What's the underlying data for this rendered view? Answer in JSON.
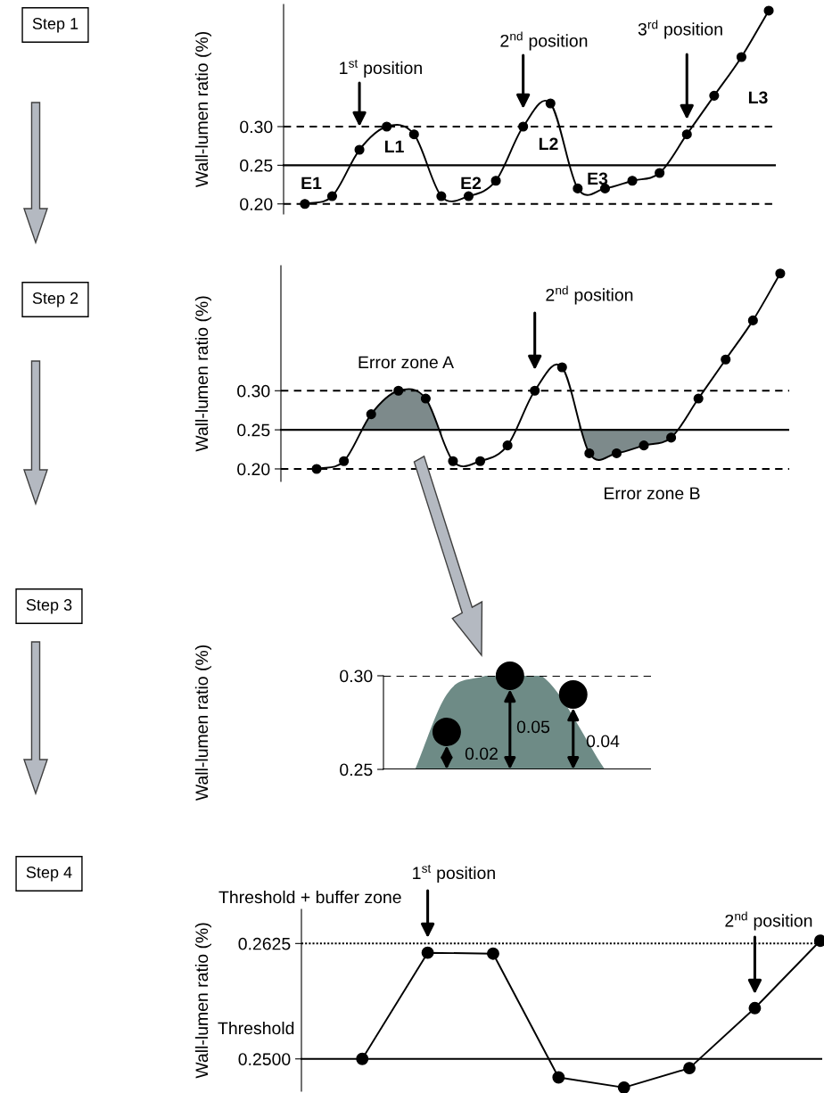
{
  "chart_data": [
    {
      "type": "line",
      "ylabel": "Wall-lumen ratio (%)",
      "categories": [
        null,
        null,
        null,
        null,
        null,
        null,
        null,
        null,
        null,
        null,
        null,
        null,
        null,
        null,
        null,
        null,
        null,
        null
      ],
      "series": [
        {
          "color": "#000000",
          "values": [
            0.2,
            0.21,
            0.27,
            0.3,
            0.29,
            0.21,
            0.21,
            0.23,
            0.3,
            0.33,
            0.22,
            0.22,
            0.23,
            0.24,
            0.29,
            0.34,
            0.39,
            0.45
          ]
        }
      ],
      "ylim": [
        0.187,
        0.458
      ],
      "yticks": [
        {
          "value": 0.2,
          "label": "0.20"
        },
        {
          "value": 0.25,
          "label": "0.25"
        },
        {
          "value": 0.3,
          "label": "0.30"
        }
      ],
      "tick_labels": "y",
      "marker": "circle",
      "ref_lines": [
        {
          "axis": "y",
          "value": 0.3,
          "line_style": "dashed"
        },
        {
          "axis": "y",
          "value": 0.25,
          "line_style": "solid"
        },
        {
          "axis": "y",
          "value": 0.2,
          "line_style": "dashed"
        }
      ],
      "annotations": [
        "Step 1",
        "1$^{st}$ position",
        "2$^{nd}$ position",
        "3$^{rd}$ position",
        "E1",
        "L1",
        "E2",
        "L2",
        "E3",
        "L3"
      ]
    },
    {
      "type": "line",
      "ylabel": "Wall-lumen ratio (%)",
      "categories": [
        null,
        null,
        null,
        null,
        null,
        null,
        null,
        null,
        null,
        null,
        null,
        null,
        null,
        null,
        null,
        null,
        null,
        null
      ],
      "series": [
        {
          "color": "#000000",
          "values": [
            0.2,
            0.21,
            0.27,
            0.3,
            0.29,
            0.21,
            0.21,
            0.23,
            0.3,
            0.33,
            0.22,
            0.22,
            0.23,
            0.24,
            0.29,
            0.34,
            0.39,
            0.45
          ]
        }
      ],
      "ylim": [
        0.184,
        0.46
      ],
      "yticks": [
        {
          "value": 0.2,
          "label": "0.20"
        },
        {
          "value": 0.25,
          "label": "0.25"
        },
        {
          "value": 0.3,
          "label": "0.30"
        }
      ],
      "tick_labels": "y",
      "marker": "circle",
      "ref_lines": [
        {
          "axis": "y",
          "value": 0.3,
          "line_style": "dashed"
        },
        {
          "axis": "y",
          "value": 0.25,
          "line_style": "solid"
        },
        {
          "axis": "y",
          "value": 0.2,
          "line_style": "dashed"
        }
      ],
      "annotations": [
        "Step 2",
        "2$^{nd}$ position",
        "Error zone A",
        "Error zone B"
      ]
    },
    {
      "type": "scatter",
      "ylabel": "Wall-lumen ratio (%)",
      "categories": [
        null,
        null,
        null,
        null,
        null,
        null,
        null
      ],
      "series": [
        {
          "type": "area",
          "color": "#6e8b86",
          "values": [
            0.25,
            0.29,
            0.299,
            null,
            0.3,
            null,
            0.25
          ]
        },
        {
          "color": "#000000",
          "marker": "circle",
          "values": [
            null,
            0.27,
            null,
            0.3,
            null,
            0.29,
            null
          ]
        }
      ],
      "ylim": [
        0.25,
        0.3
      ],
      "yticks": [
        {
          "value": 0.25,
          "label": "0.25"
        },
        {
          "value": 0.3,
          "label": "0.30"
        }
      ],
      "tick_labels": "y",
      "ref_lines": [
        {
          "axis": "y",
          "value": 0.3,
          "line_style": "dashed"
        },
        {
          "axis": "y",
          "value": 0.25,
          "line_style": "solid"
        }
      ],
      "annotations": [
        "Step 3",
        "0.02",
        "0.05",
        "0.04"
      ]
    },
    {
      "type": "line",
      "ylabel": "Wall-lumen ratio (%)",
      "categories": [
        null,
        null,
        null,
        null,
        null,
        null,
        null,
        null
      ],
      "series": [
        {
          "color": "#000000",
          "values": [
            0.25,
            0.2615,
            0.2614,
            0.248,
            0.2469,
            0.249,
            0.2555,
            0.2628
          ]
        }
      ],
      "ylim": [
        0.2465,
        0.2662
      ],
      "yticks": [
        {
          "value": 0.25,
          "label": "0.2500"
        },
        {
          "value": 0.2625,
          "label": "0.2625"
        }
      ],
      "tick_labels": "y",
      "marker": "circle",
      "ref_lines": [
        {
          "axis": "y",
          "value": 0.2625,
          "label": "Threshold + buffer zone",
          "line_style": "dotted"
        },
        {
          "axis": "y",
          "value": 0.25,
          "label": "Threshold",
          "line_style": "solid"
        }
      ],
      "annotations": [
        "Step 4",
        "1$^{st}$ position",
        "2$^{nd}$ position"
      ]
    }
  ]
}
